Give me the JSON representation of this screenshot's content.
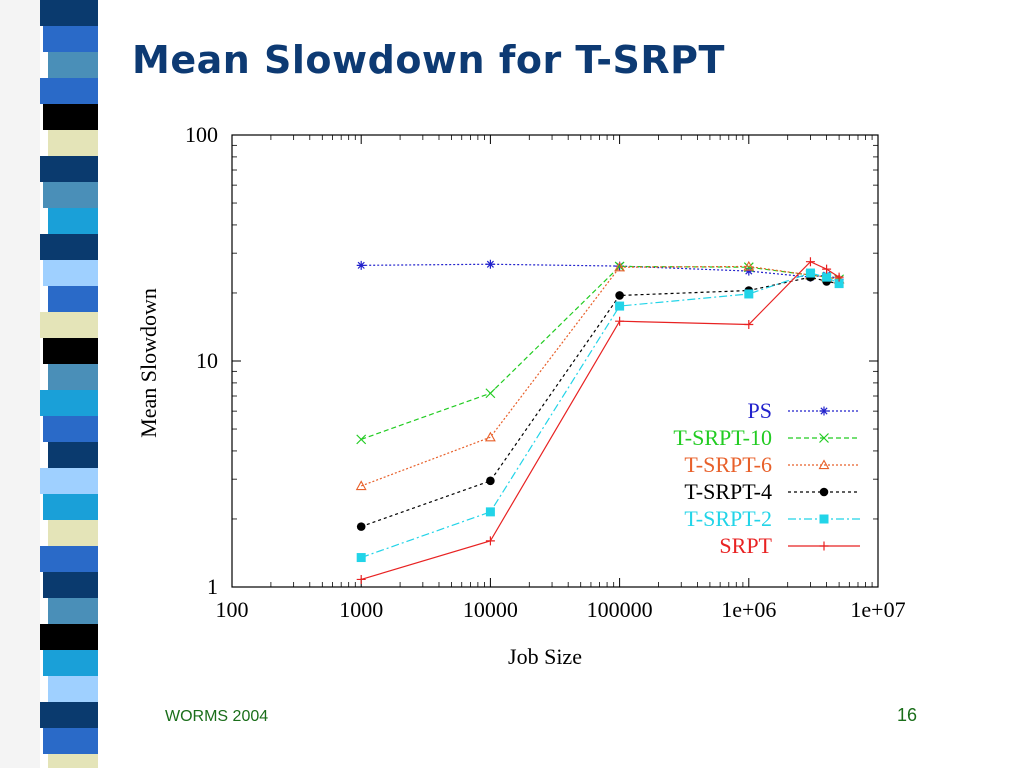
{
  "slide": {
    "title": "Mean Slowdown for T-SRPT",
    "footer_left": "WORMS 2004",
    "page_number": "16"
  },
  "colors": {
    "title": "#0d3a73",
    "footer": "#1a6e1a",
    "stripe_palette": [
      "#0a3a6e",
      "#2a6ac8",
      "#4a8fb8",
      "#e4e4b8",
      "#000000",
      "#1aa0d8",
      "#9fd0ff"
    ]
  },
  "chart_data": {
    "type": "line",
    "xlabel": "Job Size",
    "ylabel": "Mean Slowdown",
    "x_scale": "log",
    "y_scale": "log",
    "xlim": [
      100,
      10000000
    ],
    "ylim": [
      1,
      100
    ],
    "x_ticks": [
      {
        "value": 100,
        "label": "100"
      },
      {
        "value": 1000,
        "label": "1000"
      },
      {
        "value": 10000,
        "label": "10000"
      },
      {
        "value": 100000,
        "label": "100000"
      },
      {
        "value": 1000000,
        "label": "1e+06"
      },
      {
        "value": 10000000,
        "label": "1e+07"
      }
    ],
    "y_ticks": [
      {
        "value": 1,
        "label": "1"
      },
      {
        "value": 10,
        "label": "10"
      },
      {
        "value": 100,
        "label": "100"
      }
    ],
    "grid": false,
    "legend_position": "bottom-right",
    "series": [
      {
        "name": "PS",
        "color": "#2222cc",
        "marker": "star",
        "dash": "2,2",
        "points": [
          [
            1000,
            26.5
          ],
          [
            10000,
            26.8
          ],
          [
            100000,
            26.3
          ],
          [
            1000000,
            25.0
          ],
          [
            3000000,
            23.5
          ],
          [
            4000000,
            24.0
          ],
          [
            5000000,
            23.0
          ]
        ]
      },
      {
        "name": "T-SRPT-10",
        "color": "#22cc22",
        "marker": "x",
        "dash": "5,3",
        "points": [
          [
            1000,
            4.5
          ],
          [
            10000,
            7.2
          ],
          [
            100000,
            26.2
          ],
          [
            1000000,
            26.0
          ],
          [
            3000000,
            24.0
          ],
          [
            4000000,
            23.5
          ],
          [
            5000000,
            23.0
          ]
        ]
      },
      {
        "name": "T-SRPT-6",
        "color": "#e8602a",
        "marker": "triangle",
        "dash": "2,2",
        "points": [
          [
            1000,
            2.8
          ],
          [
            10000,
            4.6
          ],
          [
            100000,
            26.0
          ],
          [
            1000000,
            26.2
          ],
          [
            3000000,
            24.0
          ],
          [
            4000000,
            23.5
          ],
          [
            5000000,
            23.0
          ]
        ]
      },
      {
        "name": "T-SRPT-4",
        "color": "#000000",
        "marker": "circle",
        "dash": "3,3",
        "points": [
          [
            1000,
            1.85
          ],
          [
            10000,
            2.95
          ],
          [
            100000,
            19.5
          ],
          [
            1000000,
            20.5
          ],
          [
            3000000,
            23.5
          ],
          [
            4000000,
            22.5
          ],
          [
            5000000,
            22.0
          ]
        ]
      },
      {
        "name": "T-SRPT-2",
        "color": "#22d4e8",
        "marker": "square",
        "dash": "8,3,2,3",
        "points": [
          [
            1000,
            1.35
          ],
          [
            10000,
            2.15
          ],
          [
            100000,
            17.5
          ],
          [
            1000000,
            19.8
          ],
          [
            3000000,
            24.5
          ],
          [
            4000000,
            23.5
          ],
          [
            5000000,
            22.0
          ]
        ]
      },
      {
        "name": "SRPT",
        "color": "#e82222",
        "marker": "plus",
        "dash": "",
        "points": [
          [
            1000,
            1.08
          ],
          [
            10000,
            1.6
          ],
          [
            100000,
            15.0
          ],
          [
            1000000,
            14.5
          ],
          [
            3000000,
            27.5
          ],
          [
            4000000,
            25.5
          ],
          [
            5000000,
            23.5
          ]
        ]
      }
    ]
  }
}
